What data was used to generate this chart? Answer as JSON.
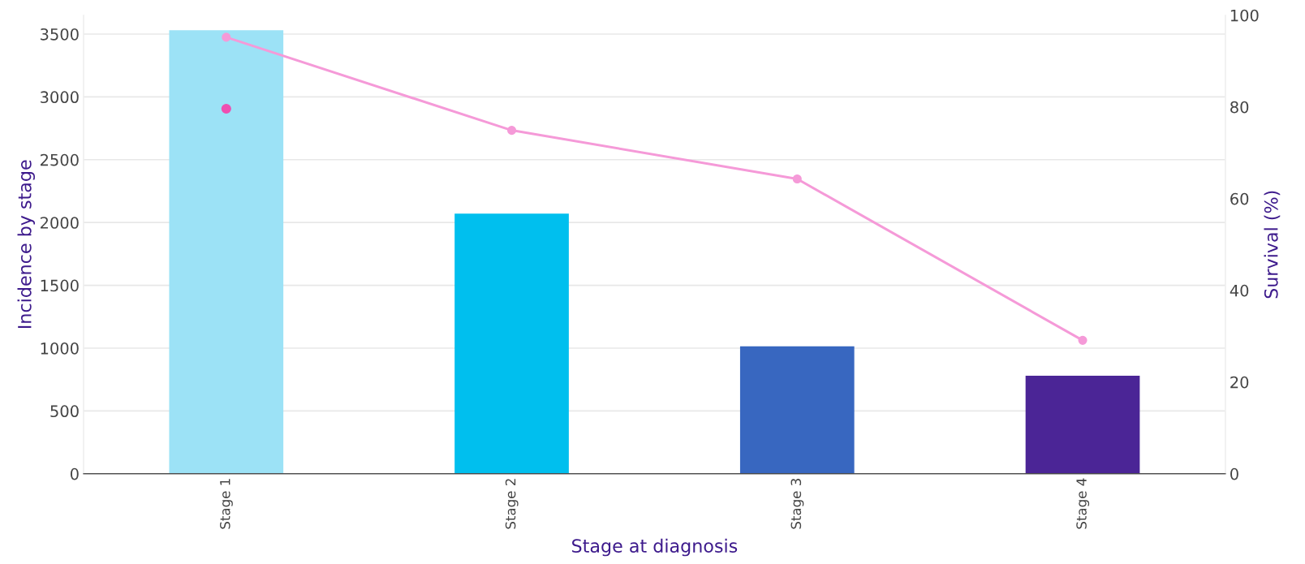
{
  "chart_data": {
    "type": "bar",
    "xlabel": "Stage at diagnosis",
    "ylabel": "Incidence by stage",
    "y2label": "Survival (%)",
    "categories": [
      "Stage 1",
      "Stage 2",
      "Stage 3",
      "Stage 4"
    ],
    "series": [
      {
        "colors": [
          "#9ce2f6",
          "#00bfee",
          "#3867c0",
          "#4b2596"
        ],
        "values": [
          3530,
          2070,
          1015,
          780
        ]
      },
      {
        "type": "line",
        "axis": "y2",
        "color": "#f59ad8",
        "marker": "circle",
        "line_style": "solid",
        "values": [
          95.2,
          74.9,
          64.3,
          29.1
        ]
      },
      {
        "type": "scatter",
        "axis": "y2",
        "color": "#ee4fb0",
        "marker": "circle",
        "values": [
          79.6,
          null,
          null,
          null
        ]
      }
    ],
    "ylim": [
      0,
      3650
    ],
    "yticks": [
      0,
      500,
      1000,
      1500,
      2000,
      2500,
      3000,
      3500
    ],
    "y2lim": [
      0,
      100
    ],
    "y2ticks": [
      0,
      20,
      40,
      60,
      80,
      100
    ],
    "grid": "y",
    "legend": false
  }
}
